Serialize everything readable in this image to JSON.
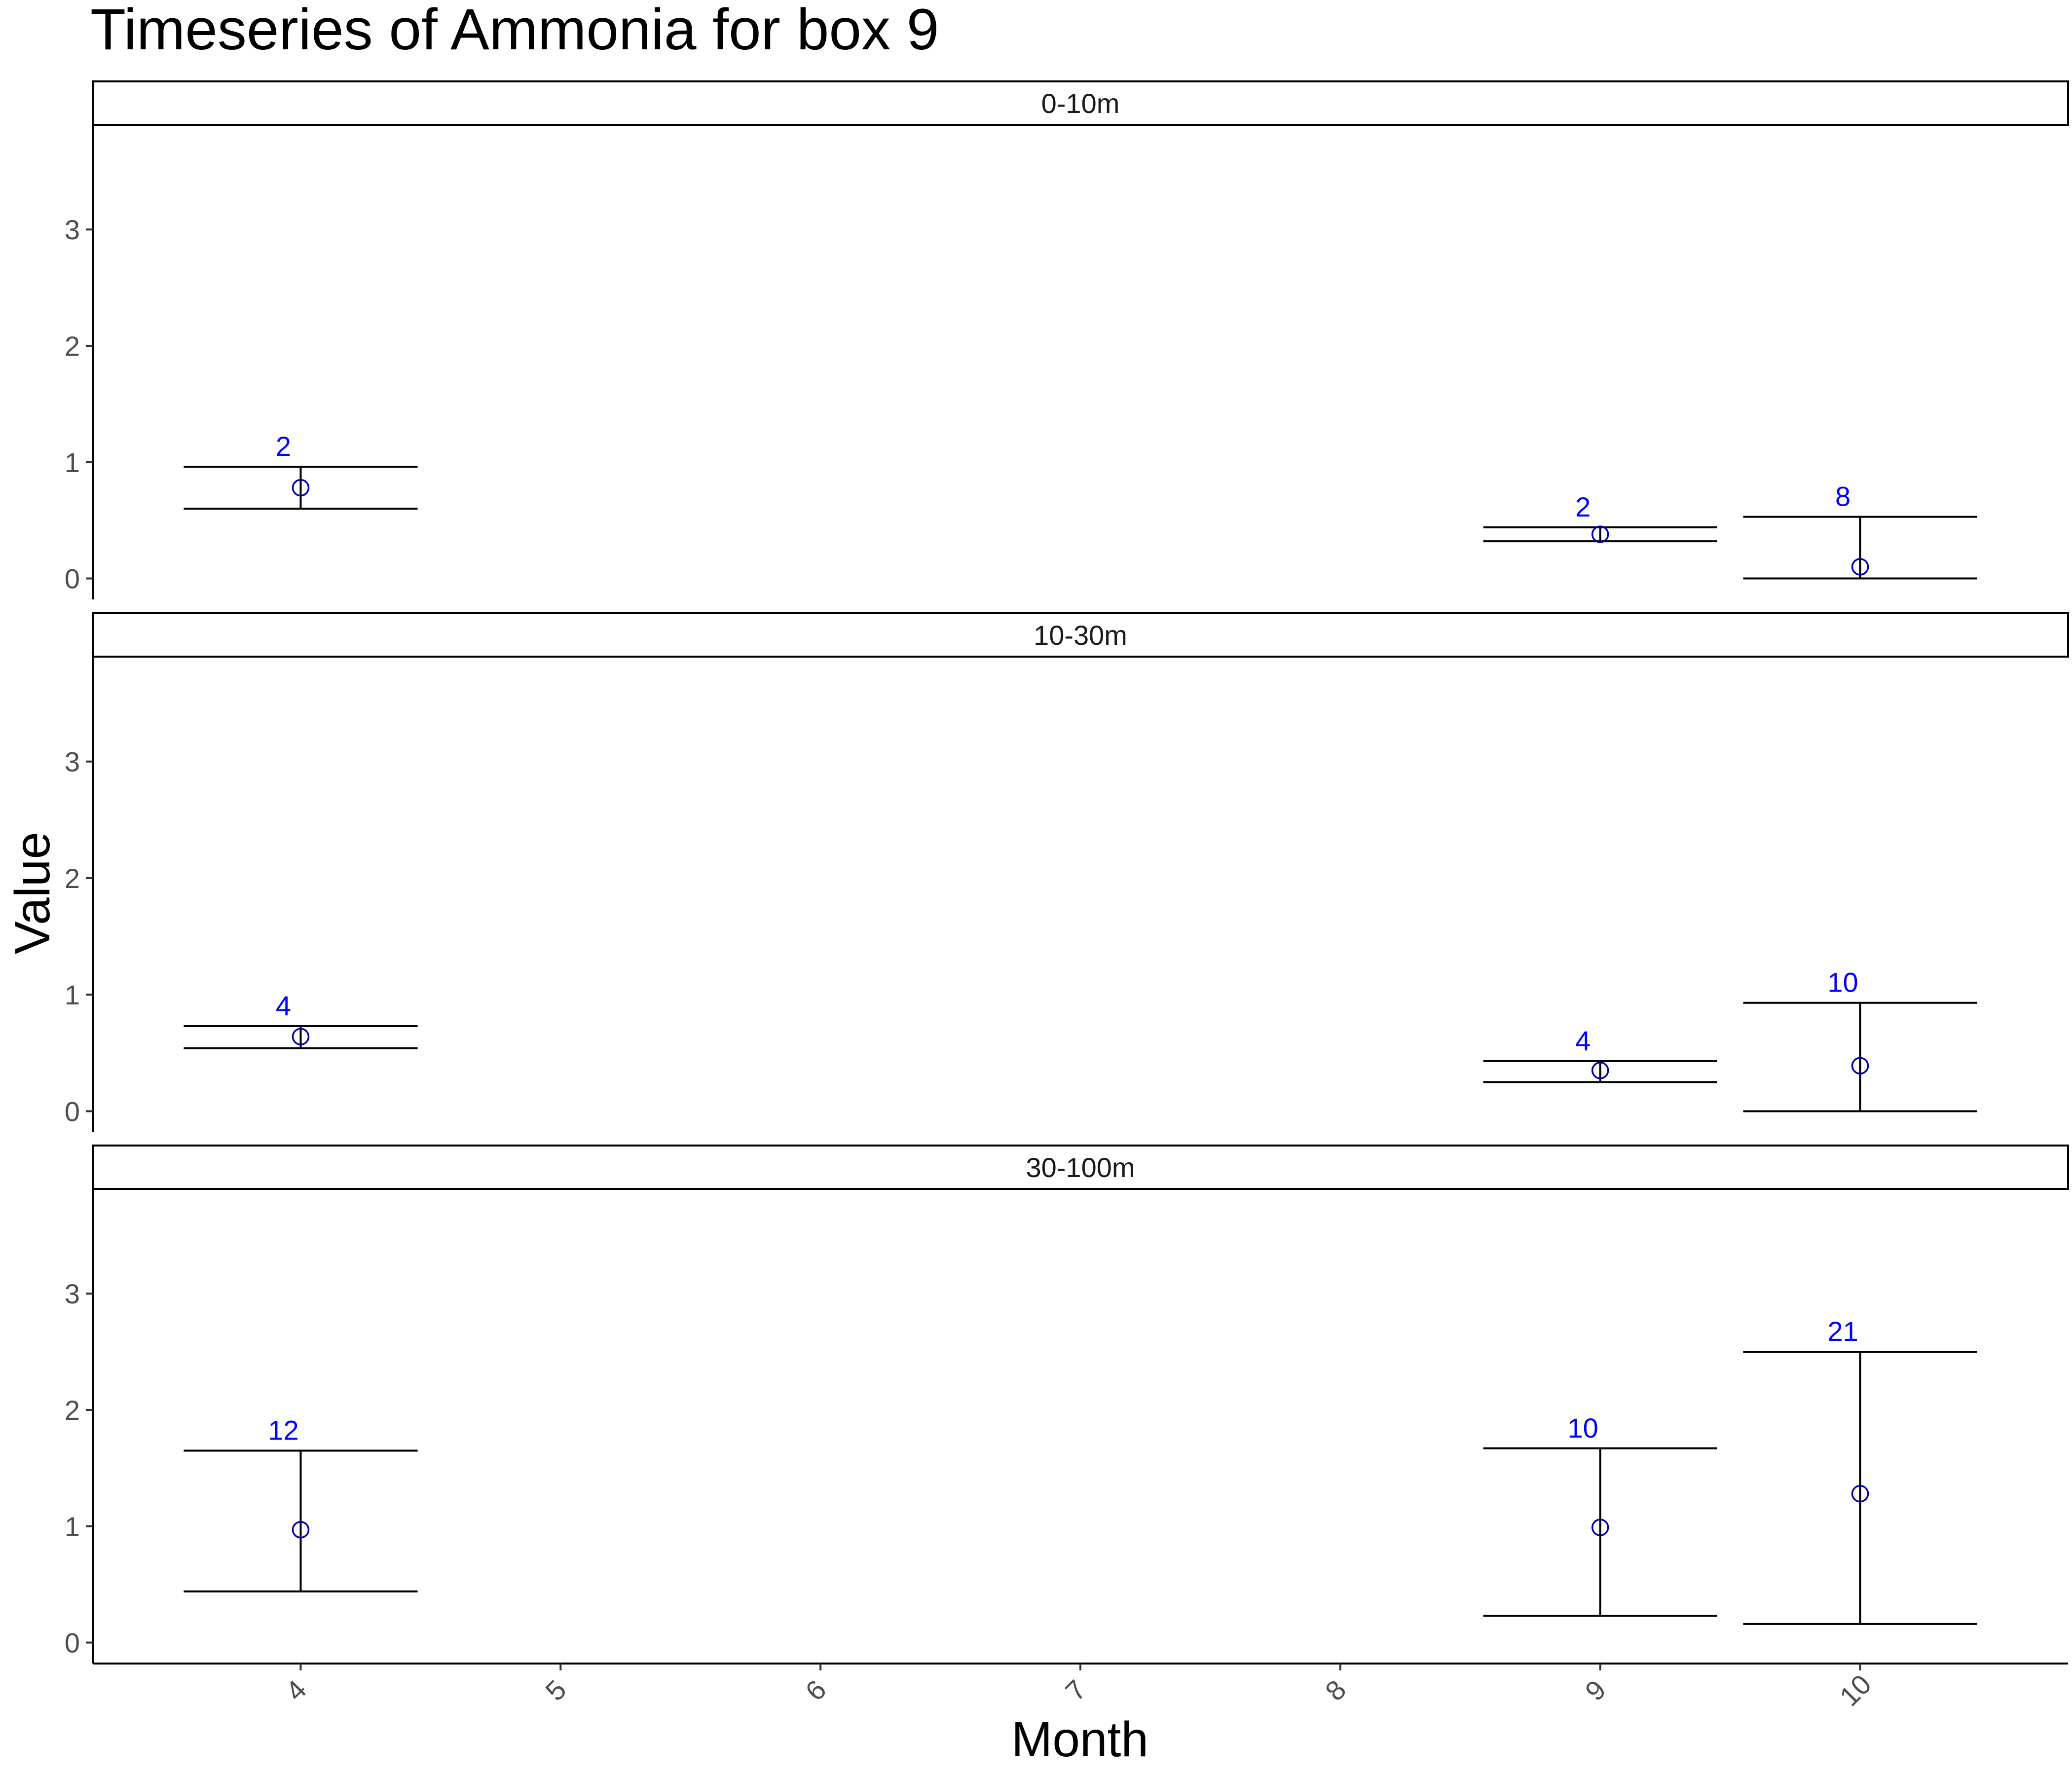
{
  "chart_data": {
    "type": "scatter",
    "title": "Timeseries of  Ammonia  for box  9",
    "xlabel": "Month",
    "ylabel": "Value",
    "x_ticks": [
      "4",
      "5",
      "6",
      "7",
      "8",
      "9",
      "10"
    ],
    "xlim": [
      3.2,
      10.8
    ],
    "ylim": [
      -0.18,
      3.9
    ],
    "y_ticks": [
      0,
      1,
      2,
      3
    ],
    "grid": false,
    "marker": "open-circle",
    "label_color": "#0000ff",
    "facets": [
      {
        "name": "0-10m",
        "points": [
          {
            "x": 4,
            "y": 0.78,
            "lower": 0.6,
            "upper": 0.96,
            "n": "2"
          },
          {
            "x": 9,
            "y": 0.38,
            "lower": 0.32,
            "upper": 0.44,
            "n": "2"
          },
          {
            "x": 10,
            "y": 0.1,
            "lower": 0.0,
            "upper": 0.53,
            "n": "8"
          }
        ]
      },
      {
        "name": "10-30m",
        "points": [
          {
            "x": 4,
            "y": 0.64,
            "lower": 0.54,
            "upper": 0.73,
            "n": "4"
          },
          {
            "x": 9,
            "y": 0.35,
            "lower": 0.25,
            "upper": 0.43,
            "n": "4"
          },
          {
            "x": 10,
            "y": 0.39,
            "lower": 0.0,
            "upper": 0.93,
            "n": "10"
          }
        ]
      },
      {
        "name": "30-100m",
        "points": [
          {
            "x": 4,
            "y": 0.97,
            "lower": 0.44,
            "upper": 1.65,
            "n": "12"
          },
          {
            "x": 9,
            "y": 0.99,
            "lower": 0.23,
            "upper": 1.67,
            "n": "10"
          },
          {
            "x": 10,
            "y": 1.28,
            "lower": 0.16,
            "upper": 2.5,
            "n": "21"
          }
        ]
      }
    ]
  }
}
